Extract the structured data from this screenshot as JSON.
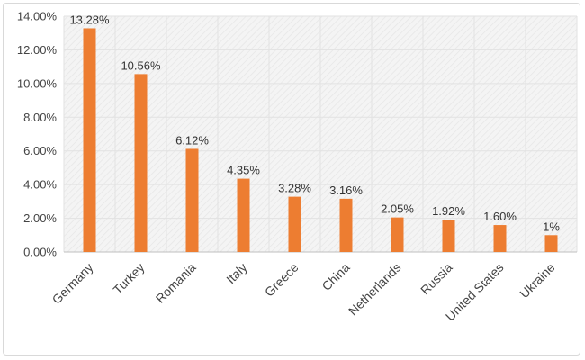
{
  "chart_data": {
    "type": "bar",
    "categories": [
      "Germany",
      "Turkey",
      "Romania",
      "Italy",
      "Greece",
      "China",
      "Netherlands",
      "Russia",
      "United States",
      "Ukraine"
    ],
    "values": [
      13.28,
      10.56,
      6.12,
      4.35,
      3.28,
      3.16,
      2.05,
      1.92,
      1.6,
      1.0
    ],
    "data_labels": [
      "13.28%",
      "10.56%",
      "6.12%",
      "4.35%",
      "3.28%",
      "3.16%",
      "2.05%",
      "1.92%",
      "1.60%",
      "1%"
    ],
    "y_ticks": [
      0,
      2,
      4,
      6,
      8,
      10,
      12,
      14
    ],
    "y_tick_labels": [
      "0.00%",
      "2.00%",
      "4.00%",
      "6.00%",
      "8.00%",
      "10.00%",
      "12.00%",
      "14.00%"
    ],
    "ylim": [
      0,
      14
    ],
    "title": "",
    "xlabel": "",
    "ylabel": "",
    "grid": true,
    "legend": "none",
    "colors": {
      "bar": "#ED7D31",
      "plot_background": "#F2F2F2",
      "hatch": "#E4E4E4",
      "axis": "#BFBFBF"
    }
  }
}
